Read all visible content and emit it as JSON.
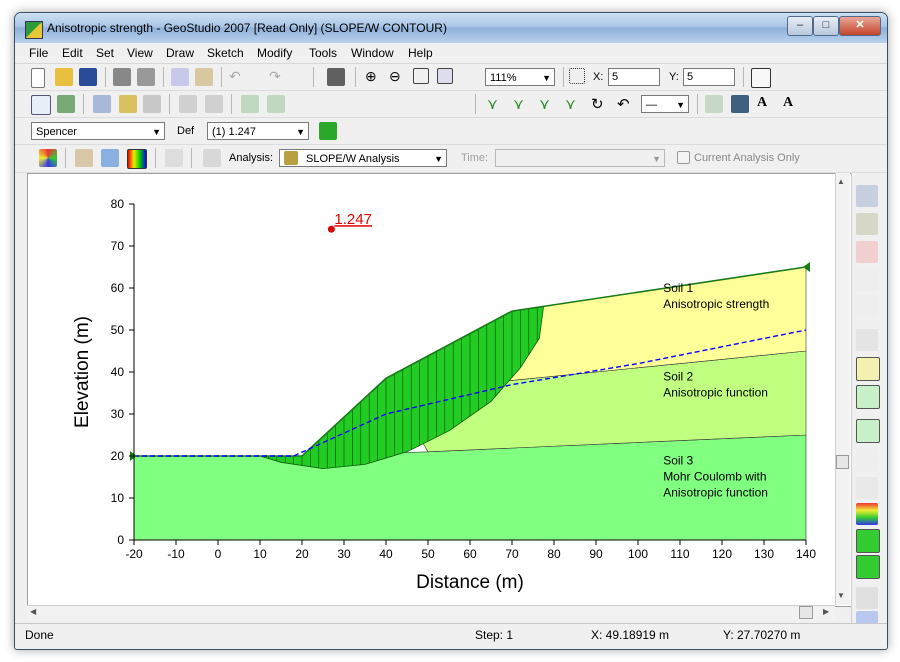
{
  "window": {
    "title": "Anisotropic strength - GeoStudio 2007 [Read Only] (SLOPE/W CONTOUR)",
    "minimize": "–",
    "maximize": "□",
    "close": "✕"
  },
  "menu": [
    "File",
    "Edit",
    "Set",
    "View",
    "Draw",
    "Sketch",
    "Modify",
    "Tools",
    "Window",
    "Help"
  ],
  "toolbar": {
    "zoom_value": "111%",
    "grid_x_label": "X:",
    "grid_x_value": "5",
    "grid_y_label": "Y:",
    "grid_y_value": "5",
    "method_value": "Spencer",
    "def_label": "Def",
    "factor_value": "(1) 1.247",
    "line_style_value": "—",
    "analysis_label": "Analysis:",
    "analysis_value": "SLOPE/W Analysis",
    "time_label": "Time:",
    "time_value": "",
    "current_only_label": "Current Analysis Only"
  },
  "chart_data": {
    "type": "cross-section",
    "title": "",
    "xlabel": "Distance (m)",
    "ylabel": "Elevation (m)",
    "xlim": [
      -20,
      140
    ],
    "ylim": [
      0,
      80
    ],
    "xticks": [
      -20,
      -10,
      0,
      10,
      20,
      30,
      40,
      50,
      60,
      70,
      80,
      90,
      100,
      110,
      120,
      130,
      140
    ],
    "yticks": [
      0,
      10,
      20,
      30,
      40,
      50,
      60,
      70,
      80
    ],
    "factor_of_safety": {
      "label": "1.247",
      "x": 27,
      "y": 74,
      "color": "#e00000"
    },
    "regions": [
      {
        "name": "Soil 3",
        "desc": [
          "Soil 3",
          "Mohr Coulomb with",
          "Anisotropic function"
        ],
        "color": "#80ff80",
        "points": [
          [
            -20,
            0
          ],
          [
            140,
            0
          ],
          [
            140,
            25
          ],
          [
            50,
            21
          ],
          [
            20,
            20
          ],
          [
            -20,
            20
          ]
        ]
      },
      {
        "name": "Soil 2",
        "desc": [
          "Soil 2",
          "Anisotropic function"
        ],
        "color": "#c0ff80",
        "points": [
          [
            50,
            21
          ],
          [
            140,
            25
          ],
          [
            140,
            45
          ],
          [
            70,
            38
          ],
          [
            40,
            38
          ]
        ]
      },
      {
        "name": "Soil 1",
        "desc": [
          "Soil 1",
          "Anisotropic strength"
        ],
        "color": "#ffff99",
        "points": [
          [
            40,
            38
          ],
          [
            70,
            38
          ],
          [
            140,
            45
          ],
          [
            140,
            65
          ],
          [
            70,
            54.5
          ],
          [
            40,
            38
          ]
        ]
      }
    ],
    "ground_surface": [
      [
        -20,
        20
      ],
      [
        20,
        20
      ],
      [
        40,
        38.5
      ],
      [
        70,
        54.5
      ],
      [
        140,
        65
      ]
    ],
    "slip_mass": {
      "color": "#22cc22",
      "top": [
        [
          10,
          20
        ],
        [
          20,
          20
        ],
        [
          40,
          38.5
        ],
        [
          70,
          54.5
        ],
        [
          77.5,
          55.5
        ]
      ],
      "bottom": [
        [
          10,
          20
        ],
        [
          15,
          18.5
        ],
        [
          25,
          17
        ],
        [
          35,
          18
        ],
        [
          45,
          21
        ],
        [
          55,
          26
        ],
        [
          65,
          33
        ],
        [
          72,
          41
        ],
        [
          76.5,
          48
        ],
        [
          77.5,
          55.5
        ]
      ]
    },
    "water_table": {
      "color": "#0000ff",
      "points": [
        [
          -20,
          20
        ],
        [
          18,
          20
        ],
        [
          40,
          30
        ],
        [
          70,
          37
        ],
        [
          100,
          42
        ],
        [
          140,
          50
        ]
      ]
    },
    "labels": [
      {
        "lines": [
          "Soil 1",
          "Anisotropic strength"
        ],
        "x": 106,
        "y": 59
      },
      {
        "lines": [
          "Soil 2",
          "Anisotropic function"
        ],
        "x": 106,
        "y": 38
      },
      {
        "lines": [
          "Soil 3",
          "Mohr Coulomb with",
          "Anisotropic function"
        ],
        "x": 106,
        "y": 18
      }
    ]
  },
  "status": {
    "left": "Done",
    "step": "Step: 1",
    "x": "X: 49.18919 m",
    "y": "Y: 27.70270 m"
  }
}
